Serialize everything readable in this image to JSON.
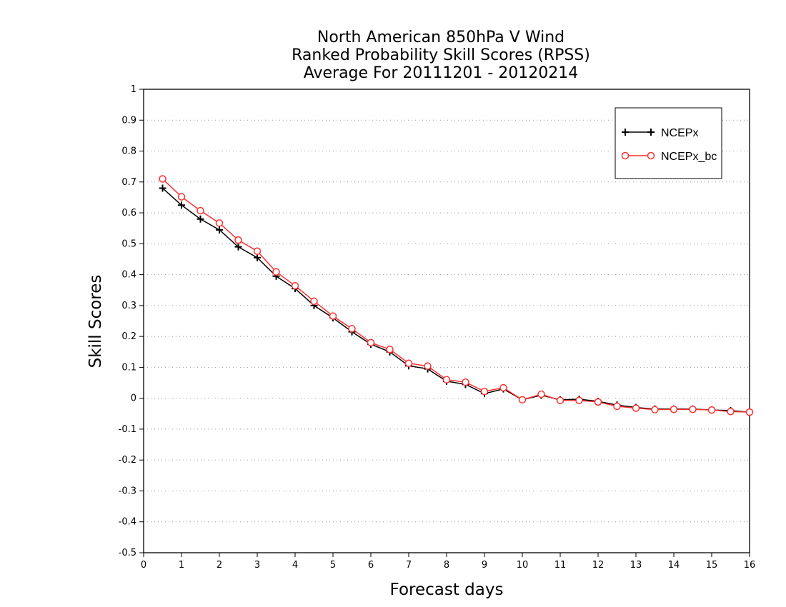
{
  "chart_data": {
    "type": "line",
    "title_lines": [
      "North American 850hPa V Wind",
      "Ranked Probability Skill Scores (RPSS)",
      "Average For 20111201 - 20120214"
    ],
    "xlabel": "Forecast days",
    "ylabel": "Skill Scores",
    "xlim": [
      0,
      16
    ],
    "ylim": [
      -0.5,
      1
    ],
    "x_ticks": [
      0,
      1,
      2,
      3,
      4,
      5,
      6,
      7,
      8,
      9,
      10,
      11,
      12,
      13,
      14,
      15,
      16
    ],
    "x_tick_labels": [
      "0",
      "1",
      "2",
      "3",
      "4",
      "5",
      "6",
      "7",
      "8",
      "9",
      "10",
      "11",
      "12",
      "13",
      "14",
      "15",
      "16"
    ],
    "y_ticks": [
      -0.5,
      -0.4,
      -0.3,
      -0.2,
      -0.1,
      0,
      0.1,
      0.2,
      0.3,
      0.4,
      0.5,
      0.6,
      0.7,
      0.8,
      0.9,
      1
    ],
    "y_tick_labels": [
      "-0.5",
      "-0.4",
      "-0.3",
      "-0.2",
      "-0.1",
      "0",
      "0.1",
      "0.2",
      "0.3",
      "0.4",
      "0.5",
      "0.6",
      "0.7",
      "0.8",
      "0.9",
      "1"
    ],
    "grid": "horizontal dotted",
    "legend_position": "top-right",
    "x": [
      0.5,
      1,
      1.5,
      2,
      2.5,
      3,
      3.5,
      4,
      4.5,
      5,
      5.5,
      6,
      6.5,
      7,
      7.5,
      8,
      8.5,
      9,
      9.5,
      10,
      10.5,
      11,
      11.5,
      12,
      12.5,
      13,
      13.5,
      14,
      14.5,
      15,
      15.5,
      16
    ],
    "series": [
      {
        "name": "NCEPx",
        "color": "#000000",
        "marker": "plus",
        "values": [
          0.68,
          0.625,
          0.58,
          0.545,
          0.49,
          0.455,
          0.395,
          0.355,
          0.3,
          0.26,
          0.215,
          0.175,
          0.15,
          0.105,
          0.095,
          0.055,
          0.045,
          0.015,
          0.03,
          -0.005,
          0.01,
          -0.005,
          -0.003,
          -0.01,
          -0.022,
          -0.03,
          -0.035,
          -0.035,
          -0.035,
          -0.038,
          -0.04,
          -0.045
        ]
      },
      {
        "name": "NCEPx_bc",
        "color": "#ff3030",
        "marker": "circle",
        "values": [
          0.71,
          0.652,
          0.607,
          0.567,
          0.512,
          0.476,
          0.409,
          0.364,
          0.314,
          0.266,
          0.225,
          0.18,
          0.158,
          0.113,
          0.104,
          0.06,
          0.052,
          0.022,
          0.034,
          -0.005,
          0.013,
          -0.007,
          -0.007,
          -0.012,
          -0.026,
          -0.032,
          -0.037,
          -0.036,
          -0.036,
          -0.038,
          -0.043,
          -0.045
        ]
      }
    ]
  }
}
